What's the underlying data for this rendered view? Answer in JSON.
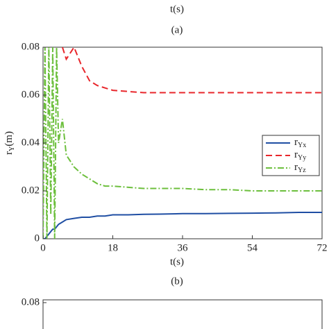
{
  "header": {
    "xlabel": "t(s)",
    "caption": "(a)"
  },
  "chart_data": [
    {
      "type": "line",
      "ylabel": {
        "text": "r",
        "sub": "Y",
        "unit": "(m)"
      },
      "xlabel": "t(s)",
      "caption": "(b)",
      "xlim": [
        0,
        72
      ],
      "xticks": [
        0,
        18,
        36,
        54,
        72
      ],
      "ylim": [
        0,
        0.08
      ],
      "yticks": [
        0,
        0.02,
        0.04,
        0.06,
        0.08
      ],
      "legend": "right",
      "x": [
        0,
        0.5,
        1,
        1.5,
        2,
        2.5,
        3,
        3.5,
        4,
        5,
        6,
        8,
        10,
        12,
        14,
        16,
        18,
        22,
        26,
        30,
        36,
        42,
        48,
        54,
        60,
        66,
        72
      ],
      "series": [
        {
          "name": "r",
          "sub": "Yx",
          "color": "#1f4ea3",
          "style": "solid",
          "values": [
            0,
            0,
            0.001,
            0.002,
            0.003,
            0.004,
            0.004,
            0.005,
            0.006,
            0.007,
            0.008,
            0.0085,
            0.009,
            0.009,
            0.0095,
            0.0095,
            0.01,
            0.01,
            0.0102,
            0.0103,
            0.0105,
            0.0105,
            0.0106,
            0.0107,
            0.0108,
            0.011,
            0.011
          ]
        },
        {
          "name": "r",
          "sub": "Yy",
          "color": "#e8262b",
          "style": "dashed",
          "values": [
            null,
            null,
            null,
            null,
            null,
            null,
            null,
            null,
            null,
            0.08,
            0.075,
            0.08,
            0.072,
            0.066,
            0.064,
            0.063,
            0.062,
            0.0615,
            0.061,
            0.061,
            0.061,
            0.061,
            0.061,
            0.061,
            0.061,
            0.061,
            0.061
          ]
        },
        {
          "name": "r",
          "sub": "Yz",
          "color": "#6cbf3c",
          "style": "dashdot",
          "values": [
            0,
            0.08,
            0,
            0.08,
            0.01,
            0.08,
            0,
            0.08,
            0.04,
            0.05,
            0.035,
            0.03,
            0.027,
            0.025,
            0.023,
            0.022,
            0.022,
            0.0215,
            0.021,
            0.021,
            0.021,
            0.0205,
            0.0205,
            0.02,
            0.02,
            0.02,
            0.02
          ]
        }
      ]
    },
    {
      "type": "frame",
      "yticks": [
        0.08
      ]
    }
  ]
}
